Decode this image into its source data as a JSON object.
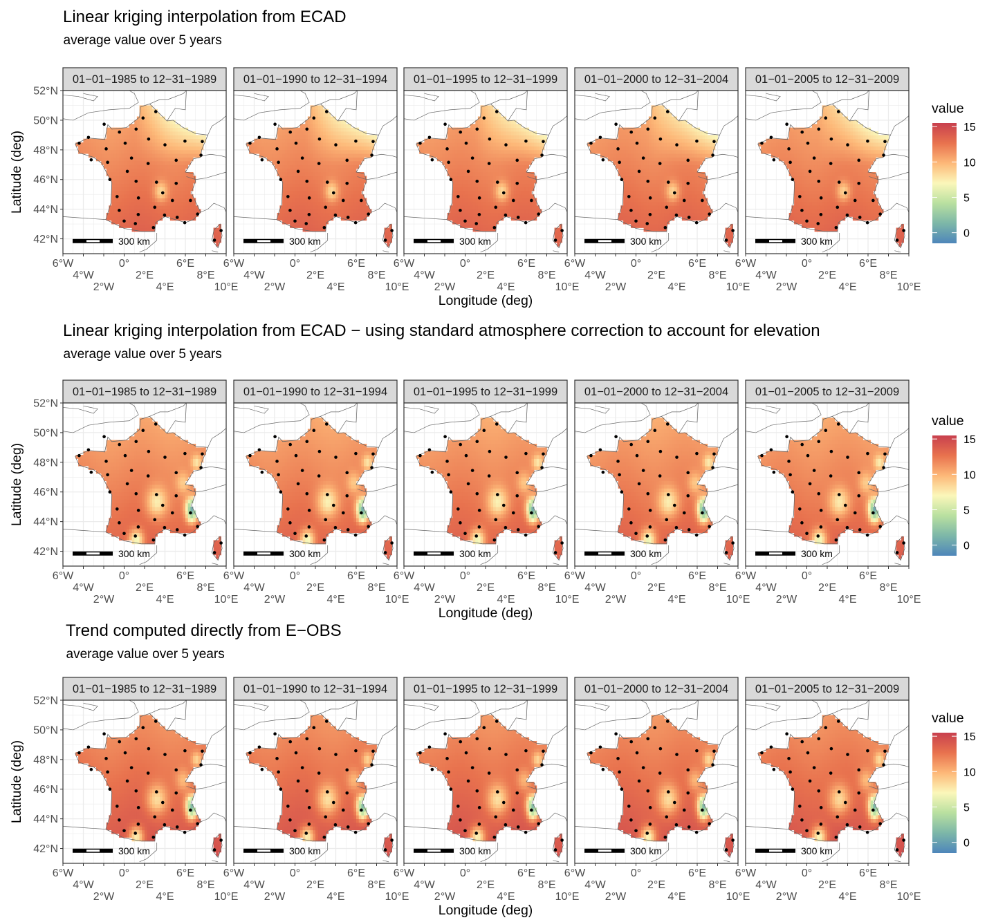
{
  "chart_data": [
    {
      "type": "heatmap",
      "title": "Linear kriging interpolation from ECAD",
      "subtitle": "average value over 5 years",
      "field": "ecad"
    },
    {
      "type": "heatmap",
      "title": "Linear kriging interpolation from ECAD − using standard atmosphere correction to account for elevation",
      "subtitle": "average value over 5 years",
      "field": "ecad_elev"
    },
    {
      "type": "heatmap",
      "title": "Trend computed directly from E−OBS",
      "subtitle": "average value over 5 years",
      "field": "eobs"
    }
  ],
  "facets": [
    "01−01−1985 to 12−31−1989",
    "01−01−1990 to 12−31−1994",
    "01−01−1995 to 12−31−1999",
    "01−01−2000 to 12−31−2004",
    "01−01−2005 to 12−31−2009"
  ],
  "xlabel": "Longitude (deg)",
  "ylabel": "Latitude (deg)",
  "xlim": [
    -6,
    10
  ],
  "ylim": [
    41,
    52
  ],
  "x_ticks": [
    {
      "v": -6,
      "label": "6°W"
    },
    {
      "v": -4,
      "label": "4°W"
    },
    {
      "v": -2,
      "label": "2°W"
    },
    {
      "v": 0,
      "label": "0°"
    },
    {
      "v": 2,
      "label": "2°E"
    },
    {
      "v": 4,
      "label": "4°E"
    },
    {
      "v": 6,
      "label": "6°E"
    },
    {
      "v": 8,
      "label": "8°E"
    },
    {
      "v": 10,
      "label": "10°E"
    }
  ],
  "y_ticks": [
    {
      "v": 42,
      "label": "42°N"
    },
    {
      "v": 44,
      "label": "44°N"
    },
    {
      "v": 46,
      "label": "46°N"
    },
    {
      "v": 48,
      "label": "48°N"
    },
    {
      "v": 50,
      "label": "50°N"
    },
    {
      "v": 52,
      "label": "52°N"
    }
  ],
  "scale_bar": "300 km",
  "legend": {
    "title": "value",
    "ticks": [
      0,
      5,
      10,
      15
    ],
    "range": [
      -1.5,
      15.5
    ],
    "colors": [
      "#4e86ba",
      "#7db7a8",
      "#b9e0a0",
      "#fbf7ba",
      "#fdb878",
      "#e8724e",
      "#c8404e"
    ]
  },
  "grid": true,
  "stations": [
    [
      3.1,
      50.58
    ],
    [
      1.85,
      50.15
    ],
    [
      -1.96,
      49.73
    ],
    [
      -0.46,
      49.2
    ],
    [
      1.17,
      49.4
    ],
    [
      -3.5,
      48.84
    ],
    [
      -4.41,
      48.45
    ],
    [
      0.1,
      48.45
    ],
    [
      2.4,
      48.73
    ],
    [
      4.0,
      48.34
    ],
    [
      5.96,
      48.59
    ],
    [
      7.66,
      48.56
    ],
    [
      -1.76,
      48.07
    ],
    [
      -3.23,
      47.33
    ],
    [
      0.72,
      47.45
    ],
    [
      -1.62,
      47.16
    ],
    [
      2.35,
      47.08
    ],
    [
      5.1,
      47.3
    ],
    [
      7.53,
      47.64
    ],
    [
      0.31,
      46.55
    ],
    [
      -1.4,
      46.0
    ],
    [
      1.17,
      45.88
    ],
    [
      3.17,
      45.82
    ],
    [
      5.1,
      45.74
    ],
    [
      3.78,
      45.1
    ],
    [
      -0.69,
      44.85
    ],
    [
      1.4,
      44.76
    ],
    [
      4.73,
      44.59
    ],
    [
      6.5,
      44.59
    ],
    [
      3.0,
      44.13
    ],
    [
      -0.48,
      43.92
    ],
    [
      1.38,
      43.64
    ],
    [
      3.96,
      43.6
    ],
    [
      5.2,
      43.45
    ],
    [
      7.2,
      43.67
    ],
    [
      0.0,
      43.2
    ],
    [
      1.1,
      43.03
    ],
    [
      5.94,
      43.09
    ],
    [
      2.87,
      42.76
    ],
    [
      9.5,
      42.56
    ],
    [
      8.85,
      41.91
    ]
  ]
}
